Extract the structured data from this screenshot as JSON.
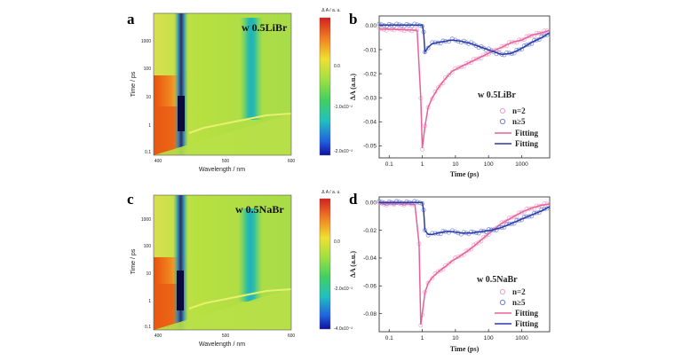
{
  "panels": {
    "a": "a",
    "b": "b",
    "c": "c",
    "d": "d"
  },
  "colors": {
    "pink": "#e8609a",
    "pink_marker": "#f0a0c8",
    "blue": "#2b3aa8",
    "blue_marker": "#7080d0"
  },
  "chart_data": [
    {
      "id": "a",
      "type": "heatmap",
      "title": "w 0.5LiBr",
      "xlabel": "Wavelength / nm",
      "ylabel": "Time / ps",
      "xticks": [
        "400",
        "500",
        "600"
      ],
      "yticks": [
        "0.1",
        "1",
        "10",
        "100",
        "1000"
      ],
      "colorbar_title": "Δ A / a. u.",
      "colorbar_ticks": [
        "0.0",
        "-1.0x10⁻²",
        "-2.0x10⁻²"
      ]
    },
    {
      "id": "b",
      "type": "line",
      "legend_title": "w 0.5LiBr",
      "xlabel": "Time (ps)",
      "ylabel": "ΔA (a.u.)",
      "xticks": [
        "0.1",
        "1",
        "10",
        "100",
        "1000"
      ],
      "yticks": [
        "0.00",
        "-0.01",
        "-0.02",
        "-0.03",
        "-0.04",
        "-0.05"
      ],
      "ylim": [
        -0.055,
        0.004
      ],
      "xlim": [
        0.05,
        7000
      ],
      "legend": [
        "n=2",
        "n≥5",
        "Fitting",
        "Fitting"
      ],
      "series": [
        {
          "name": "n=2",
          "t": [
            0.05,
            0.1,
            0.2,
            0.4,
            0.7,
            0.9,
            1.0,
            1.2,
            1.5,
            2,
            3,
            5,
            8,
            15,
            30,
            60,
            120,
            250,
            500,
            1000,
            2000,
            4000,
            7000
          ],
          "values": [
            -0.0015,
            -0.0015,
            -0.0016,
            -0.0018,
            -0.002,
            -0.03,
            -0.051,
            -0.042,
            -0.034,
            -0.03,
            -0.026,
            -0.022,
            -0.019,
            -0.017,
            -0.015,
            -0.013,
            -0.011,
            -0.009,
            -0.007,
            -0.006,
            -0.004,
            -0.003,
            -0.002
          ]
        },
        {
          "name": "n≥5",
          "t": [
            0.05,
            0.1,
            0.2,
            0.4,
            0.7,
            1.0,
            1.1,
            1.2,
            1.5,
            2,
            3,
            5,
            8,
            15,
            30,
            60,
            120,
            250,
            500,
            1000,
            2000,
            4000,
            7000
          ],
          "values": [
            0.0002,
            0.0002,
            0.0002,
            0.0002,
            0.0002,
            0.0002,
            -0.003,
            -0.011,
            -0.009,
            -0.0075,
            -0.007,
            -0.0065,
            -0.006,
            -0.0065,
            -0.0075,
            -0.009,
            -0.0105,
            -0.012,
            -0.0115,
            -0.0095,
            -0.007,
            -0.005,
            -0.003
          ]
        }
      ]
    },
    {
      "id": "c",
      "type": "heatmap",
      "title": "w 0.5NaBr",
      "xlabel": "Wavelength / nm",
      "ylabel": "Time / ps",
      "xticks": [
        "400",
        "500",
        "600"
      ],
      "yticks": [
        "0.1",
        "1",
        "10",
        "100",
        "1000"
      ],
      "colorbar_title": "Δ A / a. u.",
      "colorbar_ticks": [
        "0.0",
        "-2.0x10⁻²",
        "-4.0x10⁻²"
      ]
    },
    {
      "id": "d",
      "type": "line",
      "legend_title": "w 0.5NaBr",
      "xlabel": "Time (ps)",
      "ylabel": "ΔA (a.u.)",
      "xticks": [
        "0.1",
        "1",
        "10",
        "100",
        "1000"
      ],
      "yticks": [
        "0.00",
        "-0.02",
        "-0.04",
        "-0.06",
        "-0.08"
      ],
      "ylim": [
        -0.093,
        0.004
      ],
      "xlim": [
        0.05,
        7000
      ],
      "legend": [
        "n=2",
        "n≥5",
        "Fitting",
        "Fitting"
      ],
      "series": [
        {
          "name": "n=2",
          "t": [
            0.05,
            0.1,
            0.2,
            0.4,
            0.6,
            0.8,
            0.9,
            1.0,
            1.2,
            1.5,
            2,
            3,
            5,
            8,
            15,
            30,
            60,
            120,
            250,
            500,
            1000,
            2000,
            4000,
            7000
          ],
          "values": [
            -0.001,
            -0.001,
            -0.001,
            -0.001,
            -0.0015,
            -0.03,
            -0.088,
            -0.08,
            -0.065,
            -0.058,
            -0.054,
            -0.05,
            -0.046,
            -0.042,
            -0.038,
            -0.033,
            -0.027,
            -0.021,
            -0.015,
            -0.011,
            -0.007,
            -0.004,
            -0.002,
            -0.001
          ]
        },
        {
          "name": "n≥5",
          "t": [
            0.05,
            0.1,
            0.2,
            0.4,
            0.7,
            1.0,
            1.1,
            1.2,
            1.5,
            2,
            3,
            5,
            8,
            15,
            30,
            60,
            120,
            250,
            500,
            1000,
            2000,
            4000,
            7000
          ],
          "values": [
            0.0,
            0.0,
            0.0,
            0.0,
            0.0,
            0.0,
            -0.006,
            -0.02,
            -0.023,
            -0.023,
            -0.022,
            -0.021,
            -0.021,
            -0.022,
            -0.022,
            -0.021,
            -0.02,
            -0.018,
            -0.015,
            -0.012,
            -0.009,
            -0.006,
            -0.003
          ]
        }
      ]
    }
  ]
}
